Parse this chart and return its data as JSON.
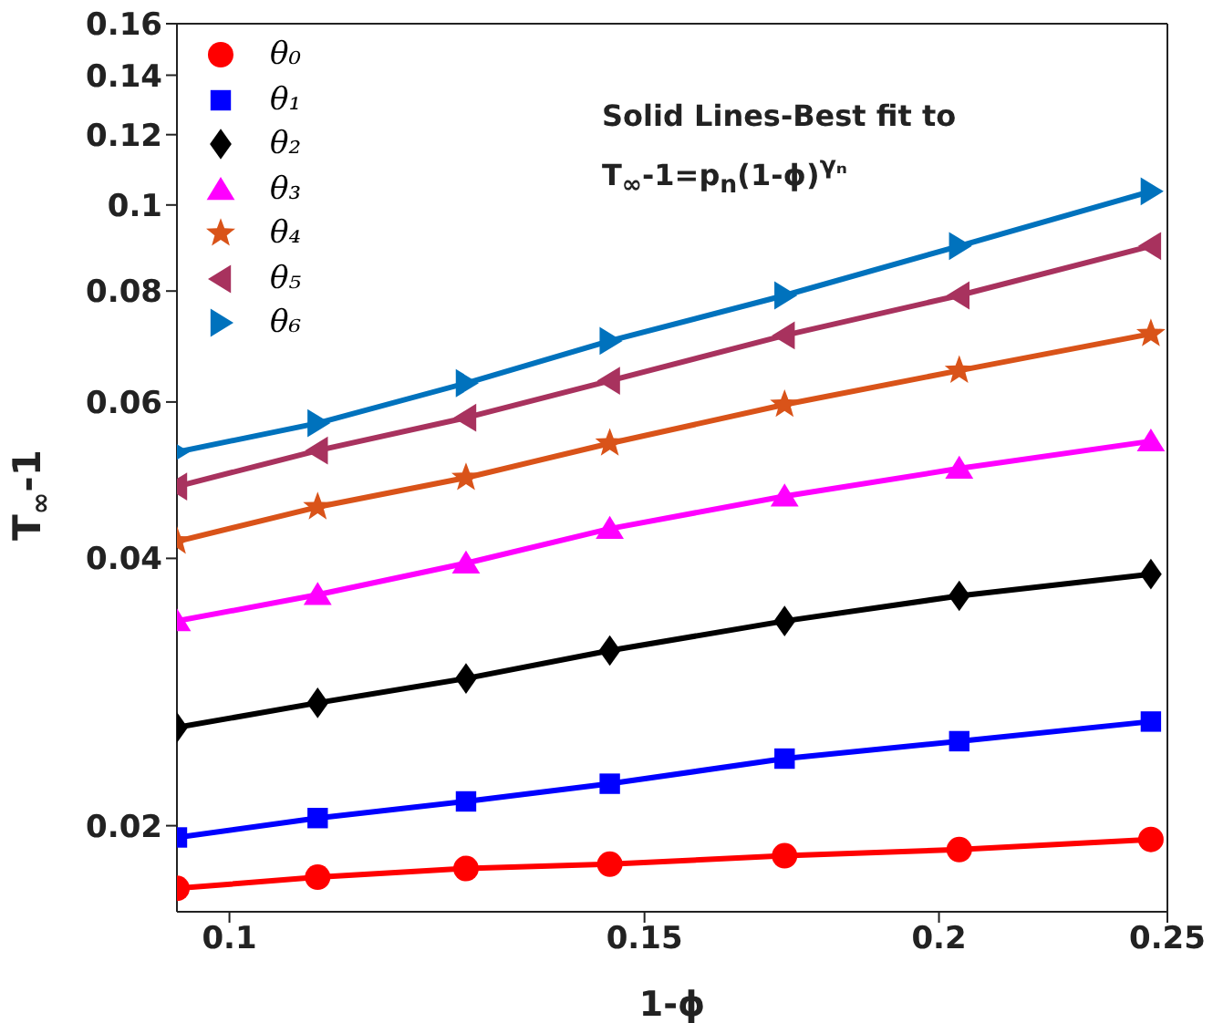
{
  "chart_data": {
    "type": "line",
    "xlabel": "1-ϕ",
    "ylabel": "T$_{∞}$-1",
    "annotations": [
      "Solid Lines-Best fit to",
      "T$_{∞}$-1=p$_{n}$(1-ϕ)$^{γₙ}$"
    ],
    "x": [
      0.095,
      0.109,
      0.126,
      0.145,
      0.172,
      0.204,
      0.246
    ],
    "series": [
      {
        "name": "θ₀",
        "color": "#ff0000",
        "marker": "circle",
        "values": [
          0.017,
          0.0175,
          0.0179,
          0.0181,
          0.0185,
          0.0188,
          0.0193
        ]
      },
      {
        "name": "θ₁",
        "color": "#0000ff",
        "marker": "square",
        "values": [
          0.0194,
          0.0204,
          0.0213,
          0.0223,
          0.0238,
          0.0249,
          0.0262
        ]
      },
      {
        "name": "θ₂",
        "color": "#000000",
        "marker": "diamond",
        "values": [
          0.0258,
          0.0275,
          0.0293,
          0.0315,
          0.034,
          0.0363,
          0.0384
        ]
      },
      {
        "name": "θ₃",
        "color": "#ff00ff",
        "marker": "triangle",
        "values": [
          0.034,
          0.0364,
          0.0395,
          0.0432,
          0.047,
          0.0505,
          0.0542
        ]
      },
      {
        "name": "θ₄",
        "color": "#d95319",
        "marker": "star",
        "values": [
          0.0418,
          0.0457,
          0.0493,
          0.0539,
          0.0596,
          0.0651,
          0.0716
        ]
      },
      {
        "name": "θ₅",
        "color": "#a8325e",
        "marker": "triangle-left",
        "values": [
          0.0482,
          0.0529,
          0.0576,
          0.0634,
          0.0713,
          0.0791,
          0.0899
        ]
      },
      {
        "name": "θ₆",
        "color": "#0072bd",
        "marker": "triangle-right",
        "values": [
          0.0527,
          0.0568,
          0.063,
          0.0703,
          0.0791,
          0.0899,
          0.1036
        ]
      }
    ],
    "xlim": [
      0.095,
      0.25
    ],
    "xticks": [
      0.1,
      0.15,
      0.2,
      0.25
    ],
    "ylim": [
      0.016,
      0.16
    ],
    "yticks": [
      0.02,
      0.04,
      0.06,
      0.08,
      0.1,
      0.12,
      0.14,
      0.16
    ],
    "log": "xy",
    "grid": false,
    "legend": "top left",
    "line_style": "solid"
  }
}
